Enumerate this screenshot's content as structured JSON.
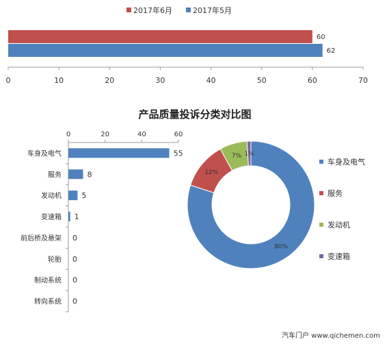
{
  "chart_data": [
    {
      "type": "bar",
      "orientation": "horizontal",
      "title": "",
      "series": [
        {
          "name": "2017年6月",
          "color": "#c0504d",
          "values": [
            60
          ]
        },
        {
          "name": "2017年5月",
          "color": "#4f81bd",
          "values": [
            62
          ]
        }
      ],
      "xlim": [
        0,
        70
      ],
      "xticks": [
        "0",
        "10",
        "20",
        "30",
        "40",
        "50",
        "60",
        "70"
      ],
      "legend": "top-center",
      "grid": false
    },
    {
      "type": "bar",
      "orientation": "horizontal",
      "title": "产品质量投诉分类对比图",
      "categories": [
        "车身及电气",
        "服务",
        "发动机",
        "变速箱",
        "前后桥及悬架",
        "轮胎",
        "制动系统",
        "转向系统"
      ],
      "values": [
        55,
        8,
        5,
        1,
        0,
        0,
        0,
        0
      ],
      "color": "#4f81bd",
      "xlim": [
        0,
        60
      ],
      "xticks": [
        "0",
        "20",
        "40",
        "60"
      ],
      "axis_position": "top",
      "grid": false
    },
    {
      "type": "pie",
      "style": "donut",
      "categories": [
        "车身及电气",
        "服务",
        "发动机",
        "变速箱"
      ],
      "values": [
        80,
        12,
        7,
        1
      ],
      "labels": [
        "80%",
        "12%",
        "7%",
        "1%"
      ],
      "colors": [
        "#4f81bd",
        "#c0504d",
        "#9bbb59",
        "#8064a2"
      ],
      "legend": "right"
    }
  ],
  "watermark": {
    "text": "汽车门户 www.qichemen.com"
  }
}
